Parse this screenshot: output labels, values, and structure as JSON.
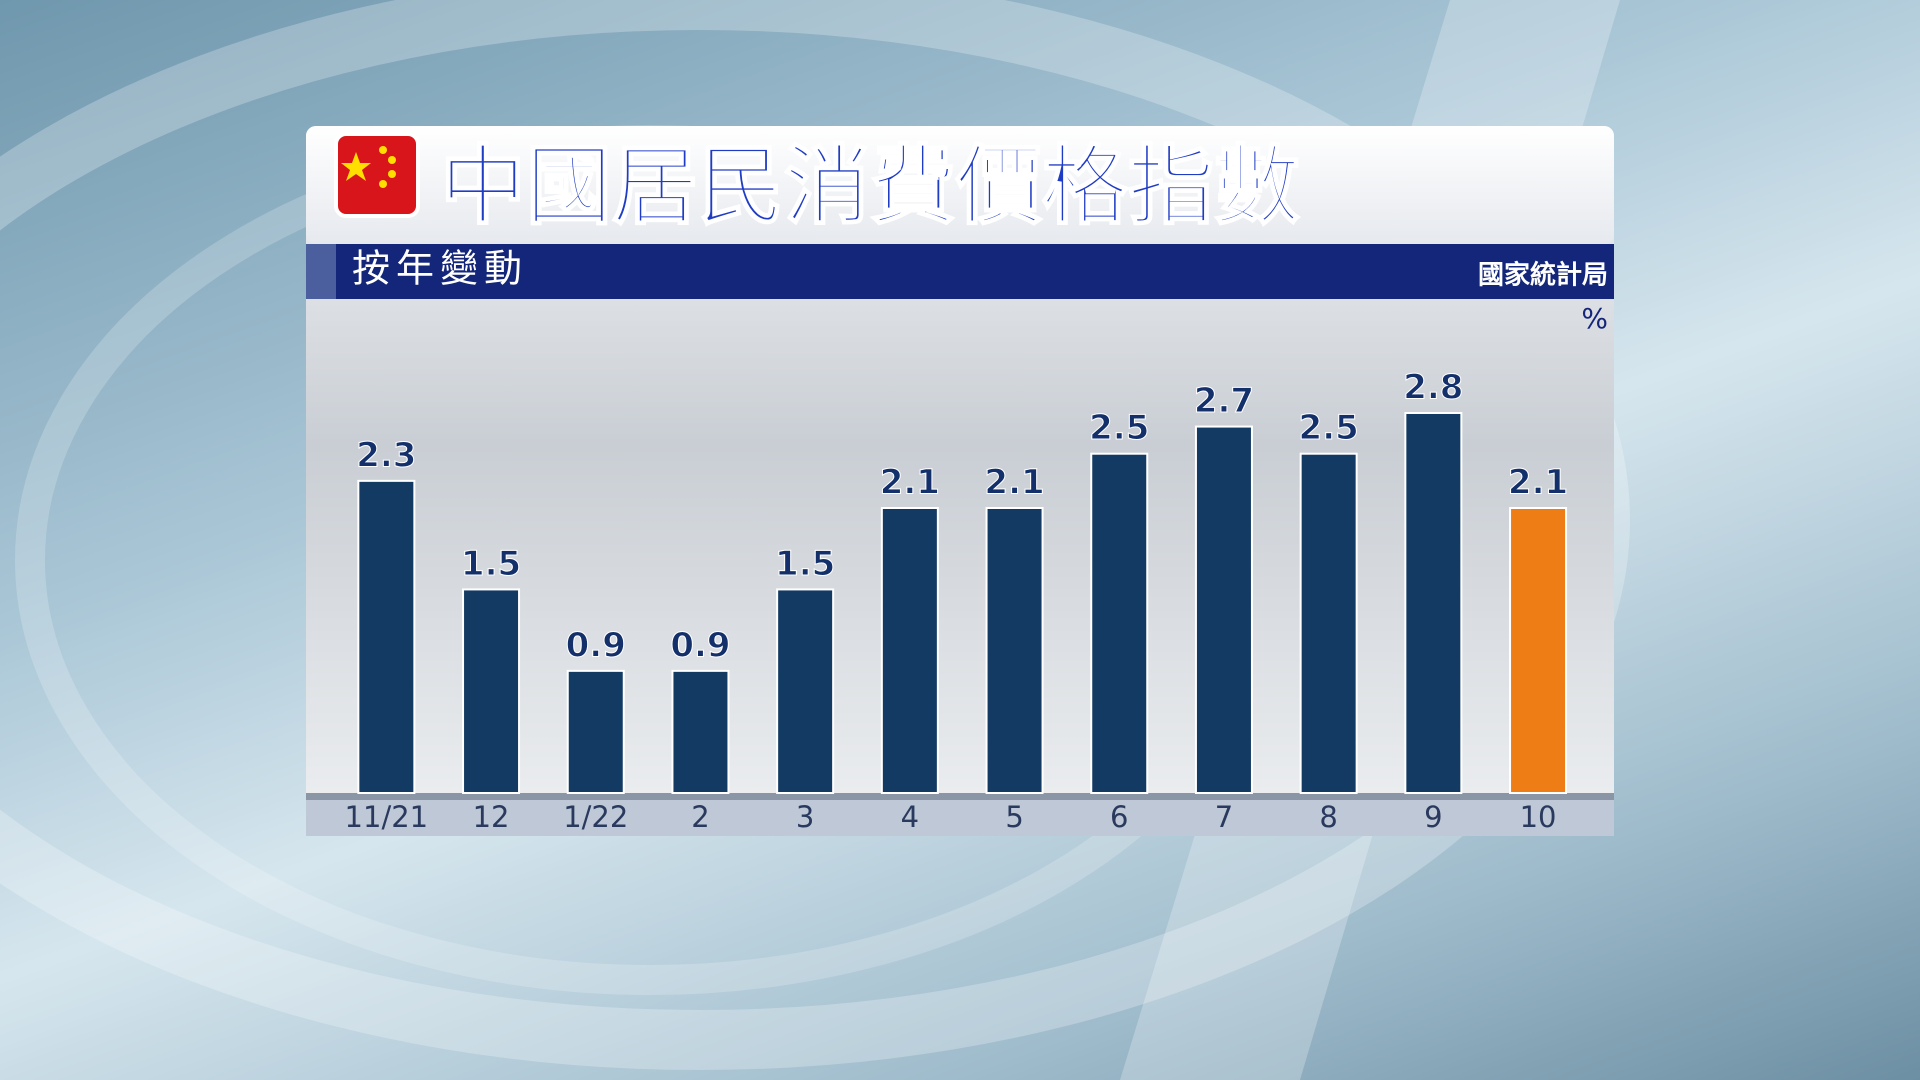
{
  "chart_data": {
    "type": "bar",
    "title": "中國居民消費價格指數",
    "subtitle": "按年變動",
    "source": "國家統計局",
    "unit": "%",
    "categories": [
      "11/21",
      "12",
      "1/22",
      "2",
      "3",
      "4",
      "5",
      "6",
      "7",
      "8",
      "9",
      "10"
    ],
    "values": [
      2.3,
      1.5,
      0.9,
      0.9,
      1.5,
      2.1,
      2.1,
      2.5,
      2.7,
      2.5,
      2.8,
      2.1
    ],
    "colors": [
      "#123a63",
      "#123a63",
      "#123a63",
      "#123a63",
      "#123a63",
      "#123a63",
      "#123a63",
      "#123a63",
      "#123a63",
      "#123a63",
      "#123a63",
      "#ee7d15"
    ],
    "ylim": [
      0,
      3.5
    ]
  }
}
